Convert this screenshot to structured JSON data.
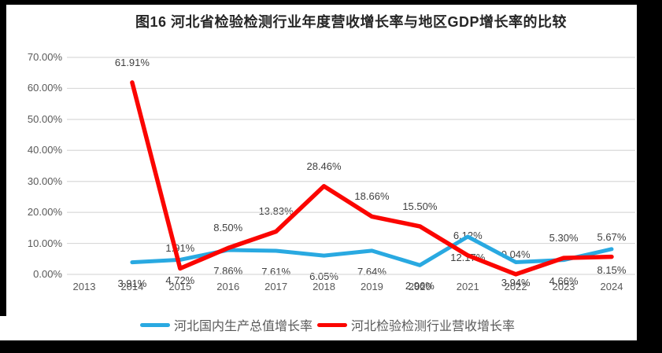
{
  "title": "图16 河北省检验检测行业年度营收增长率与地区GDP增长率的比较",
  "chart_data": {
    "type": "line",
    "title": "图16 河北省检验检测行业年度营收增长率与地区GDP增长率的比较",
    "categories": [
      "2013",
      "2014",
      "2015",
      "2016",
      "2017",
      "2018",
      "2019",
      "2020",
      "2021",
      "2022",
      "2023",
      "2024"
    ],
    "series": [
      {
        "name": "河北国内生产总值增长率",
        "color": "#29A9E1",
        "values": [
          null,
          3.91,
          4.72,
          7.86,
          7.61,
          6.05,
          7.64,
          2.96,
          12.17,
          3.94,
          4.66,
          8.15
        ],
        "labels": [
          null,
          "3.91%",
          "4.72%",
          "7.86%",
          "7.61%",
          "6.05%",
          "7.64%",
          "2.96%",
          "12.17%",
          "3.94%",
          "4.66%",
          "8.15%"
        ],
        "label_position": "below"
      },
      {
        "name": "河北检验检测行业营收增长率",
        "color": "#FB0500",
        "values": [
          null,
          61.91,
          1.91,
          8.5,
          13.83,
          28.46,
          18.66,
          15.5,
          6.12,
          0.04,
          5.3,
          5.67
        ],
        "labels": [
          null,
          "61.91%",
          "1.91%",
          "8.50%",
          "13.83%",
          "28.46%",
          "18.66%",
          "15.50%",
          "6.12%",
          "0.04%",
          "5.30%",
          "5.67%"
        ],
        "label_position": "above"
      }
    ],
    "y_ticks": [
      "0.00%",
      "10.00%",
      "20.00%",
      "30.00%",
      "40.00%",
      "50.00%",
      "60.00%",
      "70.00%"
    ],
    "ylim": [
      0,
      70
    ],
    "grid": true,
    "legend_position": "bottom",
    "axis_color": "#595959",
    "gridline_color": "#D9D9D9",
    "label_color": "#404040",
    "frame_color": "#000000",
    "background_color": "#FFFFFF"
  }
}
